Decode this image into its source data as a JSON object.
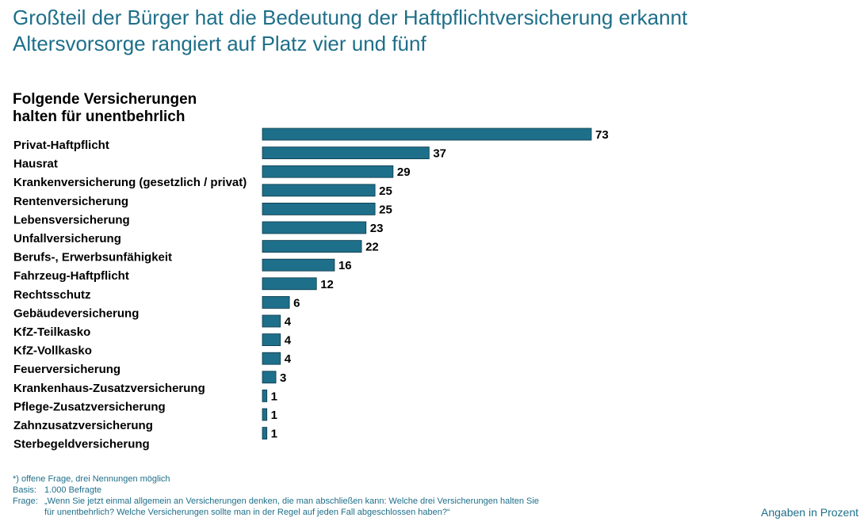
{
  "header": {
    "title_line1": "Großteil der Bürger hat die Bedeutung der Haftpflichtversicherung erkannt",
    "title_line2": "Altersvorsorge rangiert auf Platz vier und fünf"
  },
  "chart_data": {
    "type": "bar",
    "orientation": "horizontal",
    "title": "Folgende Versicherungen halten für unentbehrlich",
    "title_line1": "Folgende Versicherungen",
    "title_line2": "halten für unentbehrlich",
    "categories": [
      "Privat-Haftpflicht",
      "Hausrat",
      "Krankenversicherung (gesetzlich / privat)",
      "Rentenversicherung",
      "Lebensversicherung",
      "Unfallversicherung",
      "Berufs-, Erwerbsunfähigkeit",
      "Fahrzeug-Haftpflicht",
      "Rechtsschutz",
      "Gebäudeversicherung",
      "KfZ-Teilkasko",
      "KfZ-Vollkasko",
      "Feuerversicherung",
      "Krankenhaus-Zusatzversicherung",
      "Pflege-Zusatzversicherung",
      "Zahnzusatzversicherung",
      "Sterbegeldversicherung"
    ],
    "values": [
      73,
      37,
      29,
      25,
      25,
      23,
      22,
      16,
      12,
      6,
      4,
      4,
      4,
      3,
      1,
      1,
      1
    ],
    "data_labels": true,
    "grid": false,
    "legend": "none",
    "bar_color": "#1e6f8a"
  },
  "footnotes": {
    "note_key": "*)",
    "note_text": "offene Frage, drei Nennungen möglich",
    "basis_label": "Basis:",
    "basis_text": "1.000 Befragte",
    "question_label": "Frage:",
    "question_line1": "„Wenn Sie jetzt einmal allgemein an Versicherungen denken, die man abschließen kann: Welche drei Versicherungen halten Sie",
    "question_line2": "für unentbehrlich? Welche Versicherungen sollte man in der Regel auf jeden Fall abgeschlossen haben?“"
  },
  "unit_note": "Angaben in Prozent",
  "colors": {
    "accent": "#1e6f8a",
    "bar_stroke": "#0d3a4a"
  }
}
